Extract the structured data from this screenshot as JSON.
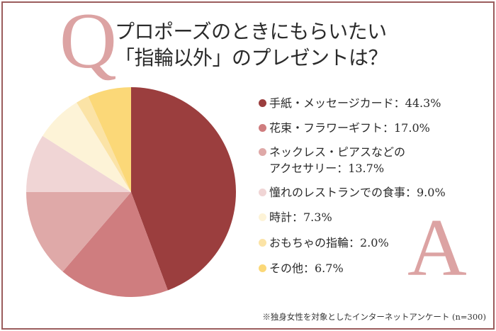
{
  "question_mark": "Q",
  "answer_mark": "A",
  "title": {
    "line1": "プロポーズのときにもらいたい",
    "line2": "「指輪以外」のプレゼントは？"
  },
  "legend": [
    {
      "label": "手紙・メッセージカード：44.3%",
      "color": "#9b3e3e"
    },
    {
      "label": "花束・フラワーギフト：17.0%",
      "color": "#cf7d7f"
    },
    {
      "label": "ネックレス・ピアスなどの",
      "label2": "アクセサリー：13.7%",
      "color": "#dfa9a8"
    },
    {
      "label": "憧れのレストランでの食事：9.0%",
      "color": "#f0d5d5"
    },
    {
      "label": "時計：7.3%",
      "color": "#fdf3d7"
    },
    {
      "label": "おもちゃの指輪：2.0%",
      "color": "#fbe3a6"
    },
    {
      "label": "その他：6.7%",
      "color": "#fbd878"
    }
  ],
  "footnote": "※独身女性を対象としたインターネットアンケート (n=300)",
  "colors": {
    "frame": "#9a5c5c",
    "accent_letter": "#dca3a3"
  },
  "chart_data": {
    "type": "pie",
    "title": "プロポーズのときにもらいたい「指輪以外」のプレゼントは？",
    "categories": [
      "手紙・メッセージカード",
      "花束・フラワーギフト",
      "ネックレス・ピアスなどのアクセサリー",
      "憧れのレストランでの食事",
      "時計",
      "おもちゃの指輪",
      "その他"
    ],
    "values": [
      44.3,
      17.0,
      13.7,
      9.0,
      7.3,
      2.0,
      6.7
    ],
    "colors": [
      "#9b3e3e",
      "#cf7d7f",
      "#dfa9a8",
      "#f0d5d5",
      "#fdf3d7",
      "#fbe3a6",
      "#fbd878"
    ],
    "unit": "%",
    "start_angle": "12 o'clock",
    "direction": "clockwise",
    "legend_position": "right",
    "note": "※独身女性を対象としたインターネットアンケート (n=300)"
  }
}
